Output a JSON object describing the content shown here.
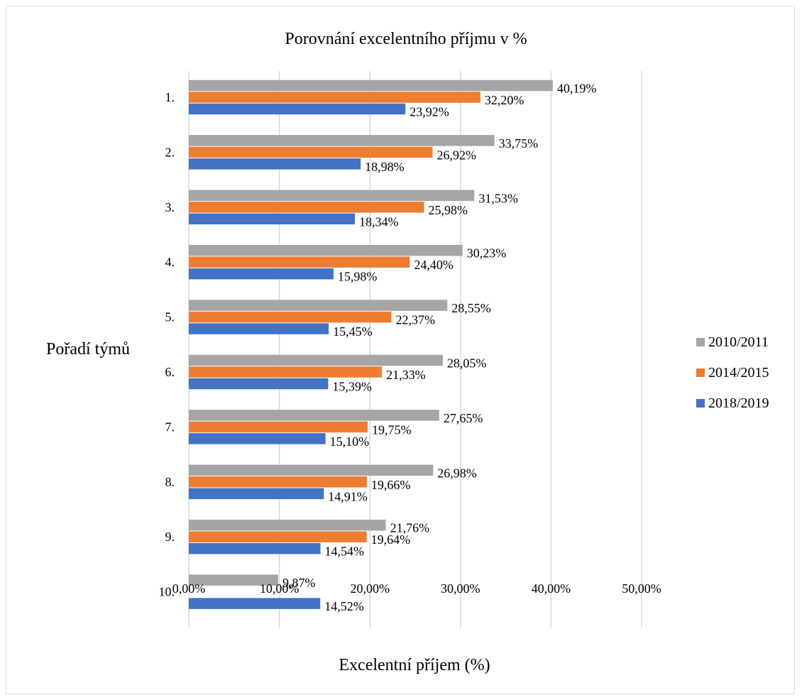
{
  "chart_data": {
    "type": "bar",
    "orientation": "horizontal",
    "title": "Porovnání excelentního příjmu v %",
    "xlabel": "Excelentní příjem (%)",
    "ylabel": "Pořadí týmů",
    "xlim": [
      0,
      50
    ],
    "x_ticks": [
      "0,00%",
      "10,00%",
      "20,00%",
      "30,00%",
      "40,00%",
      "50,00%"
    ],
    "categories": [
      "1.",
      "2.",
      "3.",
      "4.",
      "5.",
      "6.",
      "7.",
      "8.",
      "9.",
      "10."
    ],
    "grid": true,
    "legend_position": "right",
    "series": [
      {
        "name": "2010/2011",
        "color": "#a5a5a5",
        "values": [
          40.19,
          33.75,
          31.53,
          30.23,
          28.55,
          28.05,
          27.65,
          26.98,
          21.76,
          9.87
        ],
        "labels": [
          "40,19%",
          "33,75%",
          "31,53%",
          "30,23%",
          "28,55%",
          "28,05%",
          "27,65%",
          "26,98%",
          "21,76%",
          "9,87%"
        ]
      },
      {
        "name": "2014/2015",
        "color": "#ed7d31",
        "values": [
          32.2,
          26.92,
          25.98,
          24.4,
          22.37,
          21.33,
          19.75,
          19.66,
          19.64,
          null
        ],
        "labels": [
          "32,20%",
          "26,92%",
          "25,98%",
          "24,40%",
          "22,37%",
          "21,33%",
          "19,75%",
          "19,66%",
          "19,64%",
          null
        ]
      },
      {
        "name": "2018/2019",
        "color": "#4472c4",
        "values": [
          23.92,
          18.98,
          18.34,
          15.98,
          15.45,
          15.39,
          15.1,
          14.91,
          14.54,
          14.52
        ],
        "labels": [
          "23,92%",
          "18,98%",
          "18,34%",
          "15,98%",
          "15,45%",
          "15,39%",
          "15,10%",
          "14,91%",
          "14,54%",
          "14,52%"
        ]
      }
    ]
  }
}
